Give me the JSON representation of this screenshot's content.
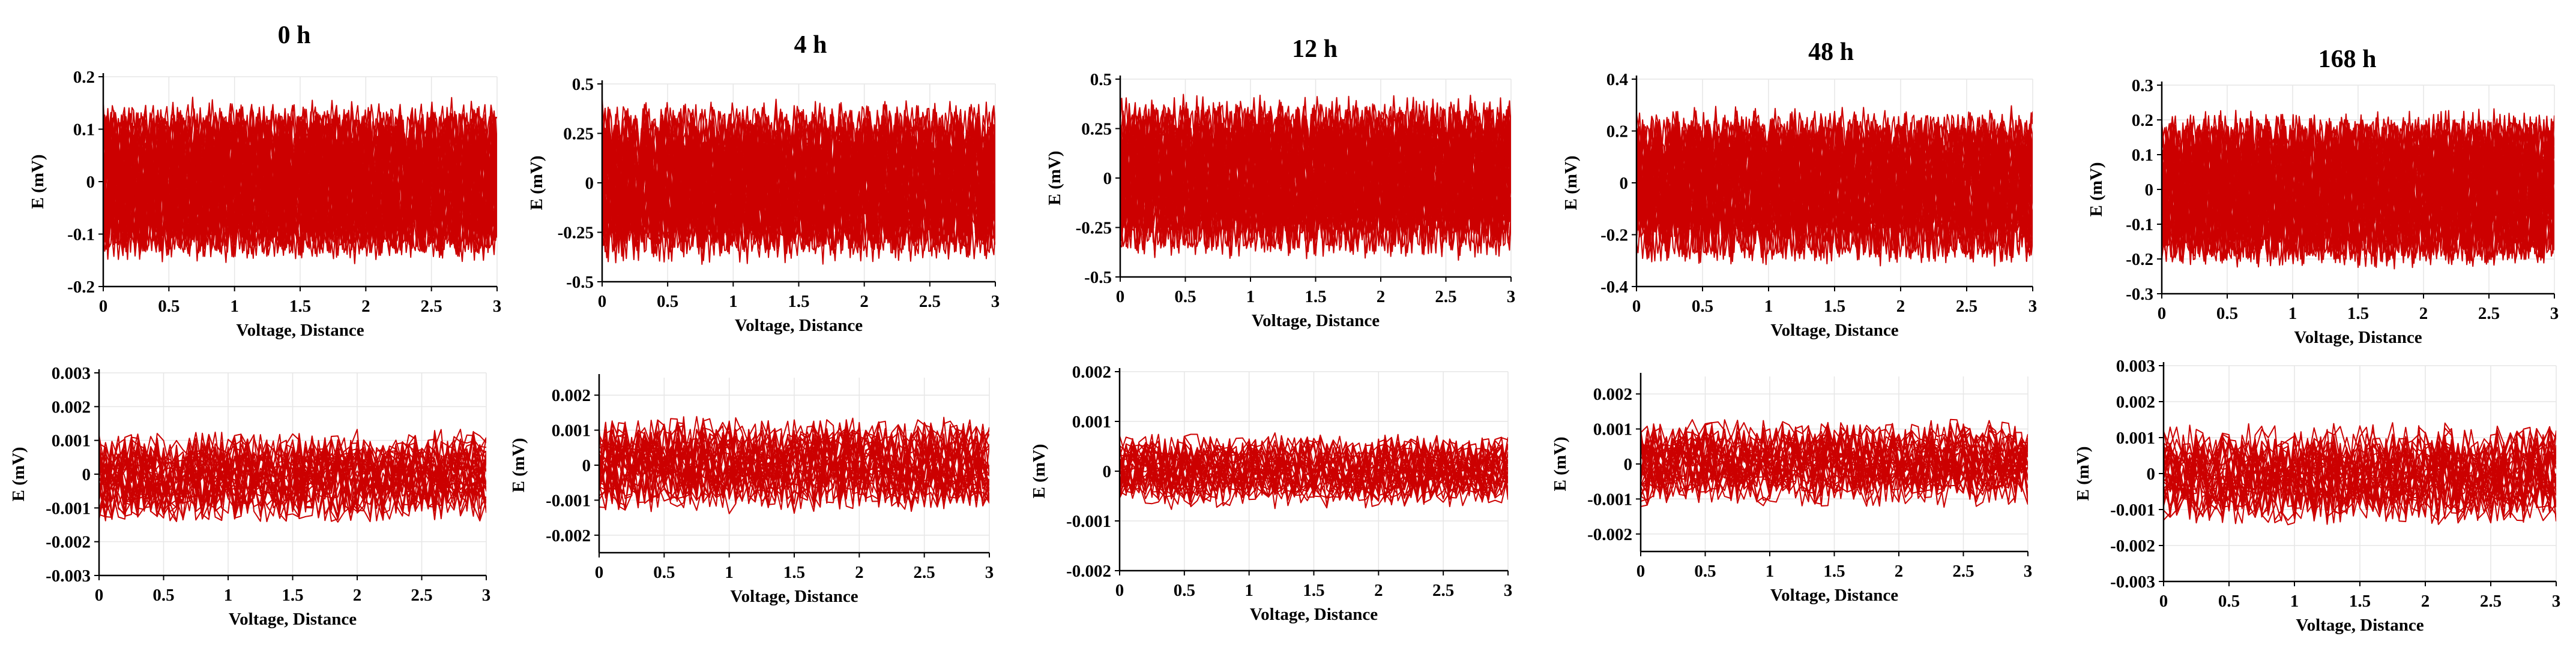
{
  "chart_data": {
    "type": "line",
    "figure_layout": "2 rows x 5 columns of line-plot panels",
    "columns": [
      "0 h",
      "4 h",
      "12 h",
      "48 h",
      "168 h"
    ],
    "series_color": "#cc0000",
    "panels": [
      {
        "title": "0 h",
        "row": 0,
        "xlabel": "Voltage, Distance",
        "ylabel": "E (mV)",
        "xlim": [
          0,
          3
        ],
        "ylim": [
          -0.2,
          0.2
        ],
        "xticks": [
          0,
          0.5,
          1,
          1.5,
          2,
          2.5,
          3
        ],
        "yticks": [
          -0.2,
          -0.1,
          0,
          0.1,
          0.2
        ],
        "ytick_labels": [
          "-0.2",
          "-0.1",
          "0",
          "0.1",
          "0.2"
        ],
        "pattern": "oscillating",
        "amplitude": 0.15,
        "n_traces": 40
      },
      {
        "title": "4 h",
        "row": 0,
        "xlabel": "Voltage, Distance",
        "ylabel": "E (mV)",
        "xlim": [
          0,
          3
        ],
        "ylim": [
          -0.5,
          0.5
        ],
        "xticks": [
          0,
          0.5,
          1,
          1.5,
          2,
          2.5,
          3
        ],
        "yticks": [
          -0.5,
          -0.25,
          0,
          0.25,
          0.5
        ],
        "ytick_labels": [
          "-0.5",
          "-0.25",
          "0",
          "0.25",
          "0.5"
        ],
        "pattern": "oscillating",
        "amplitude": 0.4,
        "n_traces": 40
      },
      {
        "title": "12 h",
        "row": 0,
        "xlabel": "Voltage, Distance",
        "ylabel": "E (mV)",
        "xlim": [
          0,
          3
        ],
        "ylim": [
          -0.5,
          0.5
        ],
        "xticks": [
          0,
          0.5,
          1,
          1.5,
          2,
          2.5,
          3
        ],
        "yticks": [
          -0.5,
          -0.25,
          0,
          0.25,
          0.5
        ],
        "ytick_labels": [
          "-0.5",
          "-0.25",
          "0",
          "0.25",
          "0.5"
        ],
        "pattern": "oscillating",
        "amplitude": 0.42,
        "n_traces": 40
      },
      {
        "title": "48 h",
        "row": 0,
        "xlabel": "Voltage, Distance",
        "ylabel": "E (mV)",
        "xlim": [
          0,
          3
        ],
        "ylim": [
          -0.4,
          0.4
        ],
        "xticks": [
          0,
          0.5,
          1,
          1.5,
          2,
          2.5,
          3
        ],
        "yticks": [
          -0.4,
          -0.2,
          0,
          0.2,
          0.4
        ],
        "ytick_labels": [
          "-0.4",
          "-0.2",
          "0",
          "0.2",
          "0.4"
        ],
        "pattern": "oscillating",
        "amplitude": 0.3,
        "n_traces": 40
      },
      {
        "title": "168 h",
        "row": 0,
        "xlabel": "Voltage, Distance",
        "ylabel": "E (mV)",
        "xlim": [
          0,
          3
        ],
        "ylim": [
          -0.3,
          0.3
        ],
        "xticks": [
          0,
          0.5,
          1,
          1.5,
          2,
          2.5,
          3
        ],
        "yticks": [
          -0.3,
          -0.2,
          -0.1,
          0,
          0.1,
          0.2,
          0.3
        ],
        "ytick_labels": [
          "-0.3",
          "-0.2",
          "-0.1",
          "0",
          "0.1",
          "0.2",
          "0.3"
        ],
        "pattern": "oscillating",
        "amplitude": 0.22,
        "n_traces": 40
      },
      {
        "title": "0 h",
        "row": 1,
        "xlabel": "Voltage, Distance",
        "ylabel": "E (mV)",
        "xlim": [
          0,
          3
        ],
        "ylim": [
          -0.003,
          0.003
        ],
        "xticks": [
          0,
          0.5,
          1,
          1.5,
          2,
          2.5,
          3
        ],
        "yticks": [
          -0.003,
          -0.002,
          -0.001,
          0,
          0.001,
          0.002,
          0.003
        ],
        "ytick_labels": [
          "-0.003",
          "-0.002",
          "-0.001",
          "0",
          "0.001",
          "0.002",
          "0.003"
        ],
        "pattern": "noise",
        "amplitude": 0.0011,
        "n_traces": 30
      },
      {
        "title": "4 h",
        "row": 1,
        "xlabel": "Voltage, Distance",
        "ylabel": "E (mV)",
        "xlim": [
          0,
          3
        ],
        "ylim": [
          -0.0025,
          0.0025
        ],
        "xticks": [
          0,
          0.5,
          1,
          1.5,
          2,
          2.5,
          3
        ],
        "yticks": [
          -0.002,
          -0.001,
          0,
          0.001,
          0.002
        ],
        "ytick_labels": [
          "-0.002",
          "-0.001",
          "0",
          "0.001",
          "0.002"
        ],
        "pattern": "noise",
        "amplitude": 0.0011,
        "n_traces": 30
      },
      {
        "title": "12 h",
        "row": 1,
        "xlabel": "Voltage, Distance",
        "ylabel": "E (mV)",
        "xlim": [
          0,
          3
        ],
        "ylim": [
          -0.002,
          0.002
        ],
        "xticks": [
          0,
          0.5,
          1,
          1.5,
          2,
          2.5,
          3
        ],
        "yticks": [
          -0.002,
          -0.001,
          0,
          0.001,
          0.002
        ],
        "ytick_labels": [
          "-0.002",
          "-0.001",
          "0",
          "0.001",
          "0.002"
        ],
        "pattern": "noise",
        "amplitude": 0.0006,
        "n_traces": 30
      },
      {
        "title": "48 h",
        "row": 1,
        "xlabel": "Voltage, Distance",
        "ylabel": "E (mV)",
        "xlim": [
          0,
          3
        ],
        "ylim": [
          -0.0025,
          0.0025
        ],
        "xticks": [
          0,
          0.5,
          1,
          1.5,
          2,
          2.5,
          3
        ],
        "yticks": [
          -0.002,
          -0.001,
          0,
          0.001,
          0.002
        ],
        "ytick_labels": [
          "-0.002",
          "-0.001",
          "0",
          "0.001",
          "0.002"
        ],
        "pattern": "noise",
        "amplitude": 0.001,
        "n_traces": 30
      },
      {
        "title": "168 h",
        "row": 1,
        "xlabel": "Voltage, Distance",
        "ylabel": "E (mV)",
        "xlim": [
          0,
          3
        ],
        "ylim": [
          -0.003,
          0.003
        ],
        "xticks": [
          0,
          0.5,
          1,
          1.5,
          2,
          2.5,
          3
        ],
        "yticks": [
          -0.003,
          -0.002,
          -0.001,
          0,
          0.001,
          0.002,
          0.003
        ],
        "ytick_labels": [
          "-0.003",
          "-0.002",
          "-0.001",
          "0",
          "0.001",
          "0.002",
          "0.003"
        ],
        "pattern": "noise",
        "amplitude": 0.0011,
        "n_traces": 30
      }
    ]
  }
}
